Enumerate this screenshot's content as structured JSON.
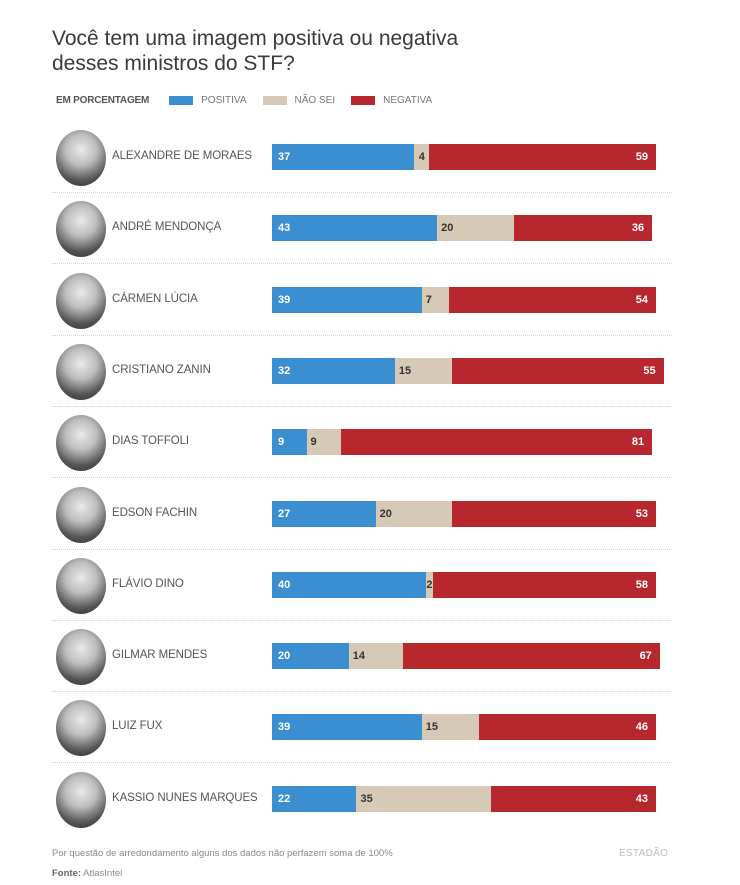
{
  "title": "Você tem uma imagem positiva ou negativa desses ministros do STF?",
  "legend": {
    "lead": "EM PORCENTAGEM",
    "items": [
      {
        "label": "POSITIVA",
        "color": "#3b8fd0"
      },
      {
        "label": "NÃO SEI",
        "color": "#d6c9b6"
      },
      {
        "label": "NEGATIVA",
        "color": "#b7282e"
      }
    ]
  },
  "chart_data": {
    "type": "bar",
    "orientation": "horizontal-stacked",
    "title": "Você tem uma imagem positiva ou negativa desses ministros do STF?",
    "xlabel": "",
    "ylabel": "",
    "unit": "EM PORCENTAGEM",
    "categories": [
      "ALEXANDRE DE MORAES",
      "ANDRÉ MENDONÇA",
      "CÁRMEN LÚCIA",
      "CRISTIANO ZANIN",
      "DIAS TOFFOLI",
      "EDSON FACHIN",
      "FLÁVIO DINO",
      "GILMAR MENDES",
      "LUIZ FUX",
      "KASSIO NUNES MARQUES"
    ],
    "series": [
      {
        "name": "POSITIVA",
        "color": "#3b8fd0",
        "values": [
          37,
          43,
          39,
          32,
          9,
          27,
          40,
          20,
          39,
          22
        ]
      },
      {
        "name": "NÃO SEI",
        "color": "#d6c9b6",
        "values": [
          4,
          20,
          7,
          15,
          9,
          20,
          2,
          14,
          15,
          35
        ]
      },
      {
        "name": "NEGATIVA",
        "color": "#b7282e",
        "values": [
          59,
          36,
          54,
          55,
          81,
          53,
          58,
          67,
          46,
          43
        ]
      }
    ],
    "xlim": [
      0,
      100
    ],
    "legend_position": "top-left"
  },
  "footer": {
    "note": "Por questão de arredondamento alguns dos dados não perfazem soma de 100%",
    "source_label": "Fonte:",
    "source_value": "AtlasIntel",
    "brand": "ESTADÃO"
  }
}
